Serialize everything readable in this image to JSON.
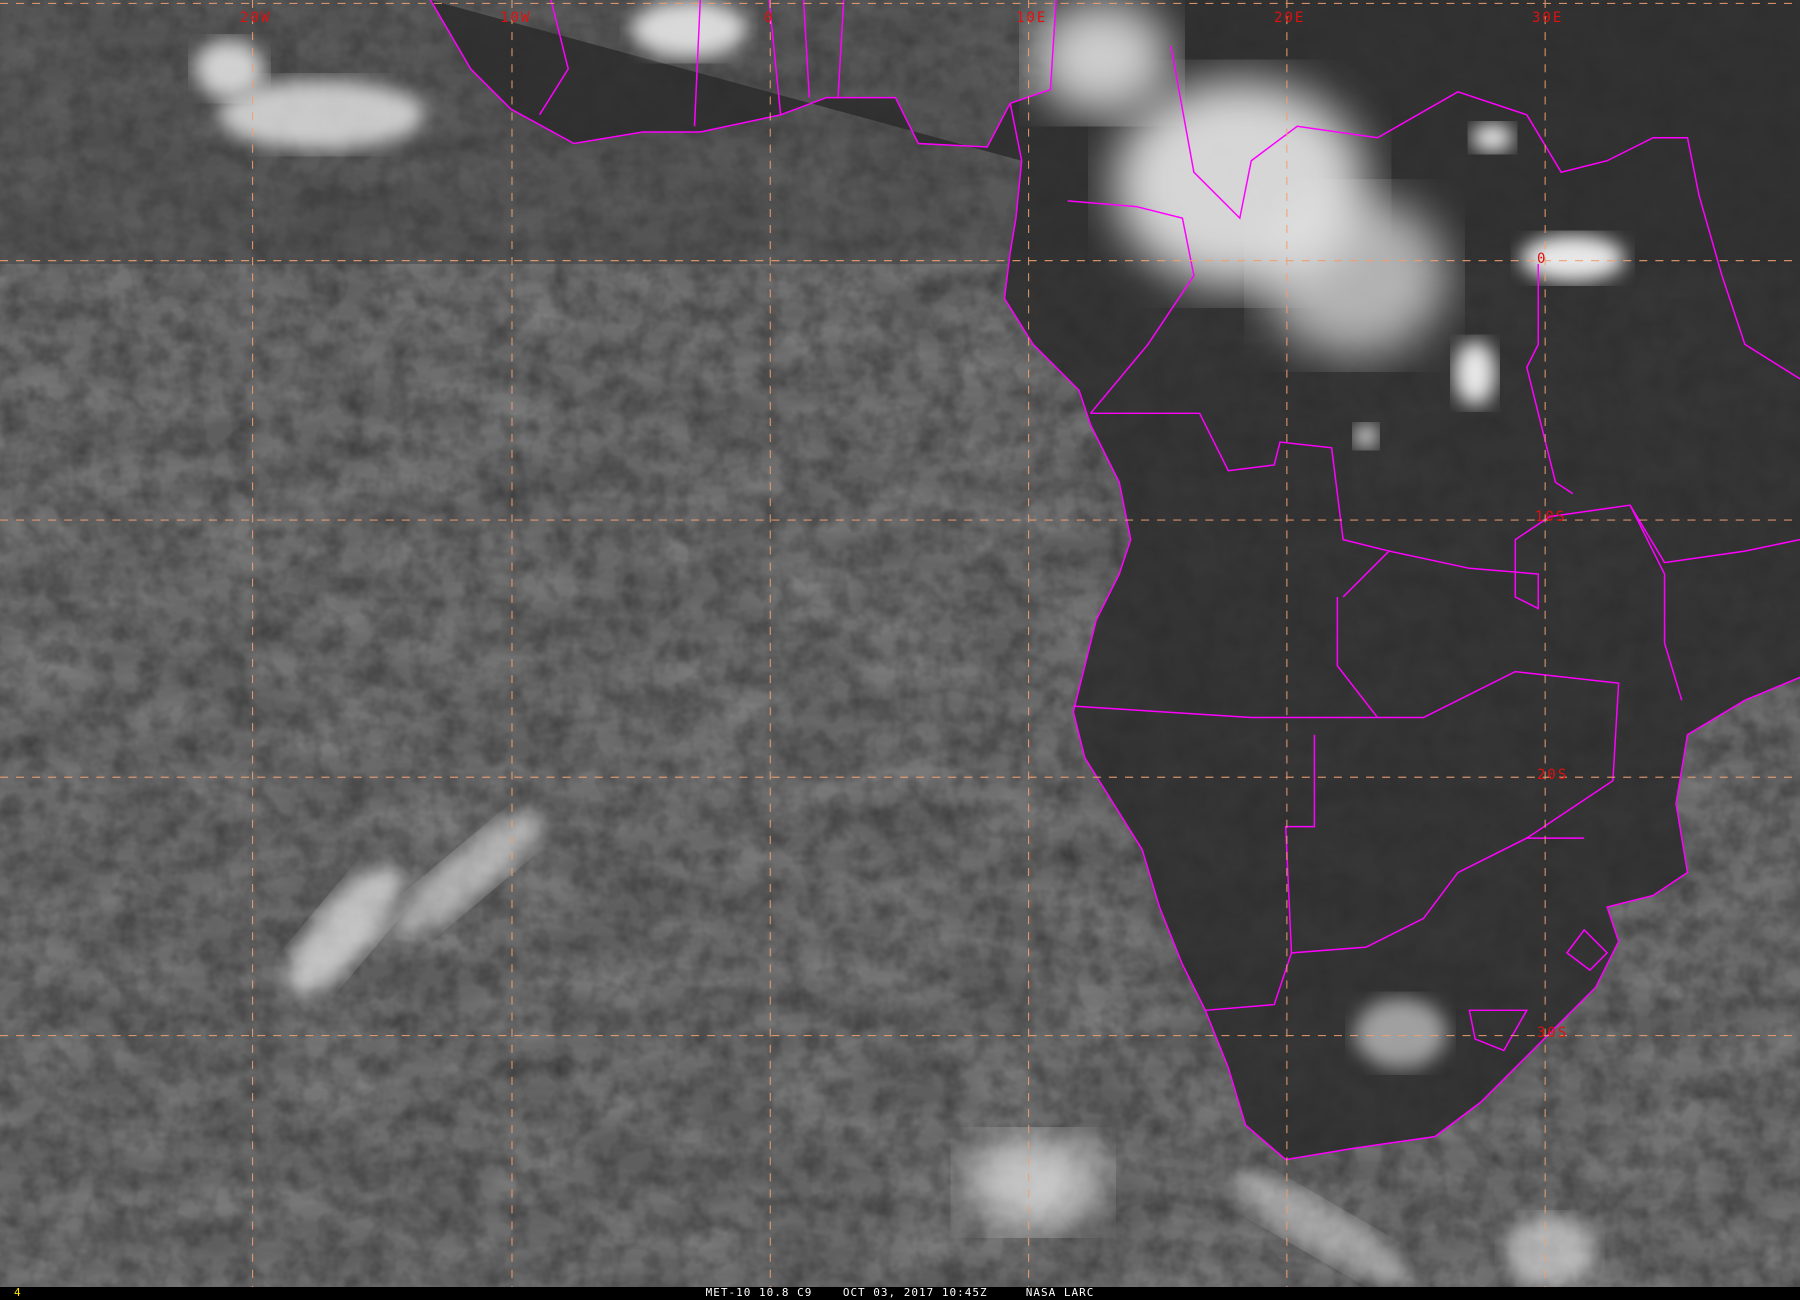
{
  "image": {
    "caption": "MET-10 10.8 C9    OCT 03, 2017 10:45Z     NASA LARC",
    "frame_number": "4"
  },
  "grid": {
    "longitude_labels": [
      "20W",
      "10W",
      "0",
      "10E",
      "20E",
      "30E"
    ],
    "latitude_labels": [
      "0",
      "10S",
      "20S",
      "30S"
    ]
  },
  "colors": {
    "borders": "#ff00ff",
    "gridlines": "#f0a070",
    "grid_labels": "#e01010",
    "caption": "#ffffff",
    "frame_number": "#ffe000"
  }
}
